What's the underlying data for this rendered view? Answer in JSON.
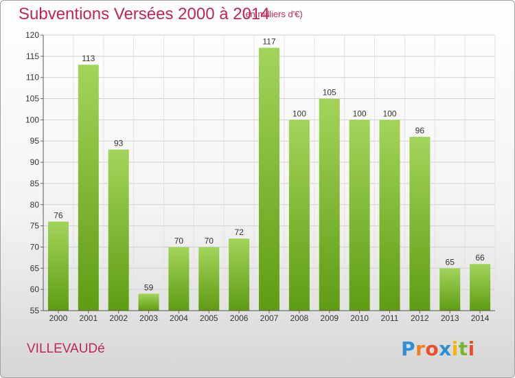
{
  "header": {
    "title": "Subventions Versées 2000 à 2014",
    "subtitle": "(en milliers d'€)"
  },
  "footer": {
    "location": "VILLEVAUDé",
    "logo_text": "Proxiti"
  },
  "colors": {
    "accent_text": "#c0245c",
    "bar_light": "#9fd055",
    "bar_dark": "#5a9a10"
  },
  "chart_data": {
    "type": "bar",
    "title": "Subventions Versées 2000 à 2014",
    "subtitle": "(en milliers d'€)",
    "xlabel": "",
    "ylabel": "",
    "categories": [
      "2000",
      "2001",
      "2002",
      "2003",
      "2004",
      "2005",
      "2006",
      "2007",
      "2008",
      "2009",
      "2010",
      "2011",
      "2012",
      "2013",
      "2014"
    ],
    "values": [
      76,
      113,
      93,
      59,
      70,
      70,
      72,
      117,
      100,
      105,
      100,
      100,
      96,
      65,
      66
    ],
    "ylim": [
      55,
      120
    ],
    "yticks": [
      55,
      60,
      65,
      70,
      75,
      80,
      85,
      90,
      95,
      100,
      105,
      110,
      115,
      120
    ],
    "grid": true
  }
}
